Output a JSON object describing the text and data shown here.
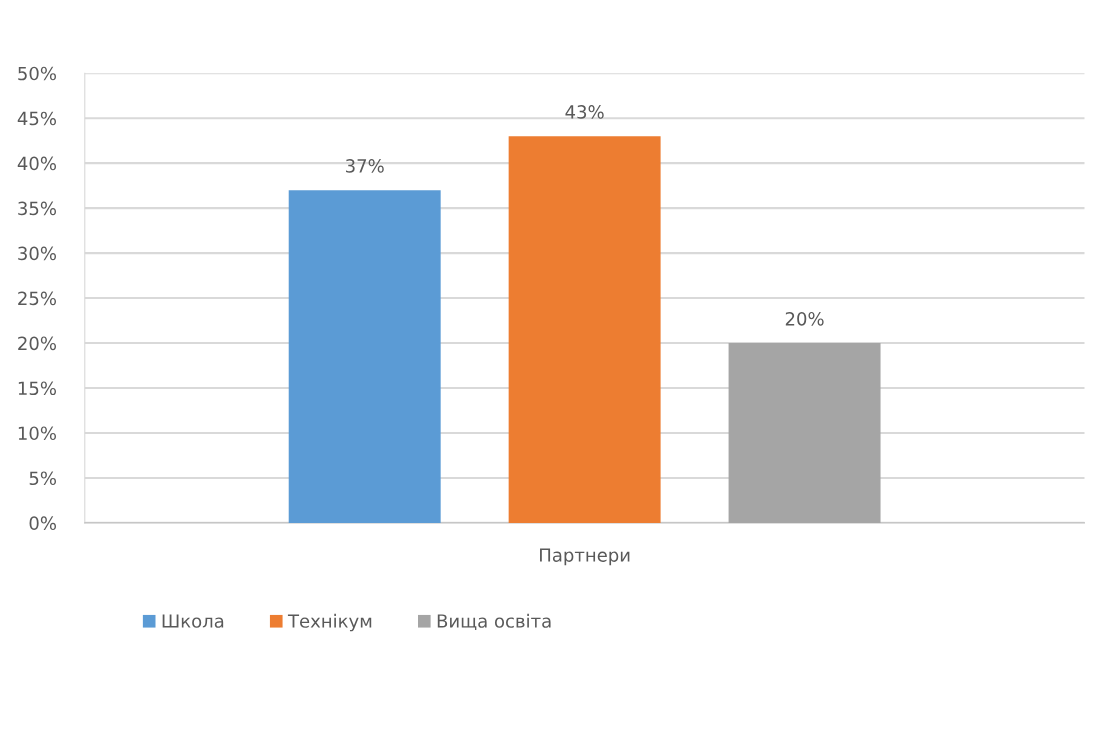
{
  "chart_data": {
    "type": "bar",
    "categories": [
      "Партнери"
    ],
    "series": [
      {
        "name": "Школа",
        "color": "#5b9bd5",
        "values": [
          37
        ],
        "value_labels": [
          "37%"
        ]
      },
      {
        "name": "Технікум",
        "color": "#ed7d31",
        "values": [
          43
        ],
        "value_labels": [
          "43%"
        ]
      },
      {
        "name": "Вища освіта",
        "color": "#a5a5a5",
        "values": [
          20
        ],
        "value_labels": [
          "20%"
        ]
      }
    ],
    "ylim": [
      0,
      50
    ],
    "yticks": [
      {
        "value": 0,
        "label": "0%"
      },
      {
        "value": 5,
        "label": "5%"
      },
      {
        "value": 10,
        "label": "10%"
      },
      {
        "value": 15,
        "label": "15%"
      },
      {
        "value": 20,
        "label": "20%"
      },
      {
        "value": 25,
        "label": "25%"
      },
      {
        "value": 30,
        "label": "30%"
      },
      {
        "value": 35,
        "label": "35%"
      },
      {
        "value": 40,
        "label": "40%"
      },
      {
        "value": 45,
        "label": "45%"
      },
      {
        "value": 50,
        "label": "50%"
      }
    ],
    "grid": "y",
    "legend": "bottom"
  }
}
